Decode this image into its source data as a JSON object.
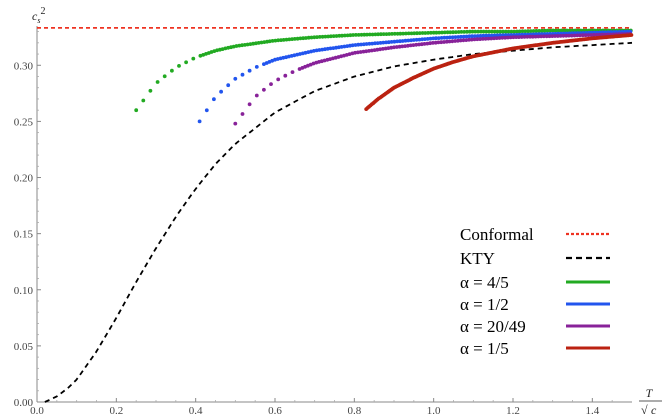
{
  "chart_data": {
    "type": "scatter",
    "xlabel": "T/√c",
    "ylabel": "cs²",
    "xlim": [
      0,
      1.5
    ],
    "ylim": [
      0,
      0.335
    ],
    "x_ticks": [
      "0.0",
      "0.2",
      "0.4",
      "0.6",
      "0.8",
      "1.0",
      "1.2",
      "1.4"
    ],
    "y_ticks": [
      "0.00",
      "0.05",
      "0.10",
      "0.15",
      "0.20",
      "0.25",
      "0.30"
    ],
    "x_tick_values": [
      0,
      0.2,
      0.4,
      0.6,
      0.8,
      1.0,
      1.2,
      1.4
    ],
    "y_tick_values": [
      0,
      0.05,
      0.1,
      0.15,
      0.2,
      0.25,
      0.3
    ],
    "legend_position": "bottom-right",
    "series": [
      {
        "name": "Conformal",
        "style": "dashed-line",
        "color": "#ee3322",
        "x": [
          0,
          1.5
        ],
        "y": [
          0.3333,
          0.3333
        ]
      },
      {
        "name": "KTY",
        "style": "dashed-line",
        "color": "#000000",
        "x": [
          0.02,
          0.05,
          0.08,
          0.1,
          0.15,
          0.2,
          0.25,
          0.3,
          0.35,
          0.4,
          0.45,
          0.5,
          0.6,
          0.7,
          0.8,
          0.9,
          1.0,
          1.1,
          1.2,
          1.3,
          1.4,
          1.5
        ],
        "y": [
          0.0,
          0.005,
          0.013,
          0.02,
          0.045,
          0.075,
          0.107,
          0.137,
          0.165,
          0.19,
          0.212,
          0.23,
          0.258,
          0.277,
          0.29,
          0.299,
          0.305,
          0.31,
          0.313,
          0.316,
          0.318,
          0.32
        ]
      },
      {
        "name": "α = 4/5",
        "style": "dots",
        "color": "#22aa22",
        "x": [
          0.25,
          0.3,
          0.35,
          0.4,
          0.45,
          0.5,
          0.6,
          0.7,
          0.8,
          0.9,
          1.0,
          1.1,
          1.2,
          1.3,
          1.4,
          1.5
        ],
        "y": [
          0.26,
          0.284,
          0.298,
          0.307,
          0.313,
          0.317,
          0.322,
          0.325,
          0.327,
          0.328,
          0.329,
          0.33,
          0.33,
          0.331,
          0.331,
          0.331
        ]
      },
      {
        "name": "α = 1/2",
        "style": "dots",
        "color": "#2255ee",
        "x": [
          0.41,
          0.45,
          0.5,
          0.55,
          0.6,
          0.7,
          0.8,
          0.9,
          1.0,
          1.1,
          1.2,
          1.3,
          1.4,
          1.5
        ],
        "y": [
          0.25,
          0.272,
          0.288,
          0.298,
          0.305,
          0.313,
          0.318,
          0.321,
          0.324,
          0.326,
          0.327,
          0.328,
          0.329,
          0.33
        ]
      },
      {
        "name": "α = 20/49",
        "style": "dots",
        "color": "#882299",
        "x": [
          0.5,
          0.55,
          0.6,
          0.65,
          0.7,
          0.8,
          0.9,
          1.0,
          1.1,
          1.2,
          1.3,
          1.4,
          1.5
        ],
        "y": [
          0.248,
          0.272,
          0.286,
          0.295,
          0.302,
          0.311,
          0.316,
          0.32,
          0.323,
          0.325,
          0.326,
          0.327,
          0.328
        ]
      },
      {
        "name": "α = 1/5",
        "style": "dots",
        "color": "#bb2211",
        "x": [
          0.83,
          0.86,
          0.9,
          0.95,
          1.0,
          1.05,
          1.1,
          1.2,
          1.3,
          1.4,
          1.5
        ],
        "y": [
          0.261,
          0.27,
          0.28,
          0.289,
          0.297,
          0.303,
          0.308,
          0.315,
          0.32,
          0.324,
          0.327
        ]
      }
    ]
  }
}
